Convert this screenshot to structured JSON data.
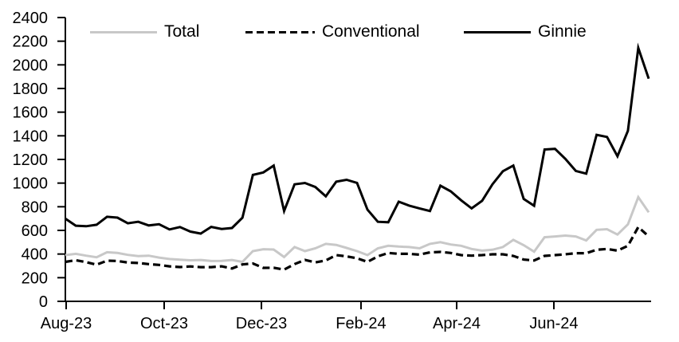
{
  "chart_data": {
    "type": "line",
    "title": "",
    "xlabel": "",
    "ylabel": "",
    "grid": false,
    "legend_position": "top",
    "y_axis": {
      "min": 0,
      "max": 2400,
      "step": 200,
      "tick_labels": [
        "0",
        "200",
        "400",
        "600",
        "800",
        "1000",
        "1200",
        "1400",
        "1600",
        "1800",
        "2000",
        "2200",
        "2400"
      ]
    },
    "x_axis": {
      "tick_labels": [
        "Aug-23",
        "Oct-23",
        "Dec-23",
        "Feb-24",
        "Apr-24",
        "Jun-24"
      ],
      "tick_positions": [
        0.0014,
        0.1694,
        0.3361,
        0.5068,
        0.6708,
        0.8374
      ],
      "unit": "weekly observations, Aug-2023 through Aug-2024"
    },
    "series": [
      {
        "name": "Total",
        "color": "#c8c8c8",
        "style": "solid",
        "values": [
          391,
          402,
          386,
          373,
          415,
          409,
          393,
          382,
          386,
          370,
          358,
          352,
          347,
          350,
          341,
          342,
          350,
          334,
          425,
          441,
          438,
          375,
          459,
          425,
          448,
          486,
          477,
          452,
          425,
          391,
          448,
          470,
          463,
          459,
          448,
          486,
          500,
          481,
          470,
          443,
          429,
          436,
          459,
          520,
          475,
          420,
          542,
          549,
          556,
          549,
          515,
          605,
          610,
          565,
          651,
          881,
          753
        ]
      },
      {
        "name": "Conventional",
        "color": "#000000",
        "style": "dashed",
        "values": [
          334,
          348,
          332,
          310,
          344,
          341,
          328,
          324,
          315,
          308,
          296,
          290,
          295,
          289,
          289,
          296,
          278,
          312,
          320,
          283,
          284,
          268,
          315,
          350,
          330,
          346,
          391,
          380,
          364,
          334,
          380,
          409,
          402,
          402,
          395,
          414,
          418,
          409,
          391,
          386,
          391,
          398,
          398,
          384,
          353,
          346,
          384,
          391,
          398,
          407,
          407,
          436,
          443,
          429,
          470,
          628,
          549
        ]
      },
      {
        "name": "Ginnie",
        "color": "#000000",
        "style": "solid",
        "values": [
          700,
          640,
          635,
          648,
          715,
          708,
          660,
          673,
          642,
          652,
          608,
          628,
          590,
          573,
          630,
          612,
          620,
          707,
          1069,
          1090,
          1148,
          764,
          990,
          1001,
          967,
          888,
          1012,
          1028,
          1001,
          775,
          673,
          669,
          843,
          810,
          786,
          764,
          978,
          930,
          854,
          786,
          850,
          990,
          1100,
          1148,
          866,
          808,
          1284,
          1290,
          1205,
          1103,
          1080,
          1408,
          1390,
          1227,
          1442,
          2143,
          1883
        ]
      }
    ],
    "legend": [
      "Total",
      "Conventional",
      "Ginnie"
    ]
  }
}
